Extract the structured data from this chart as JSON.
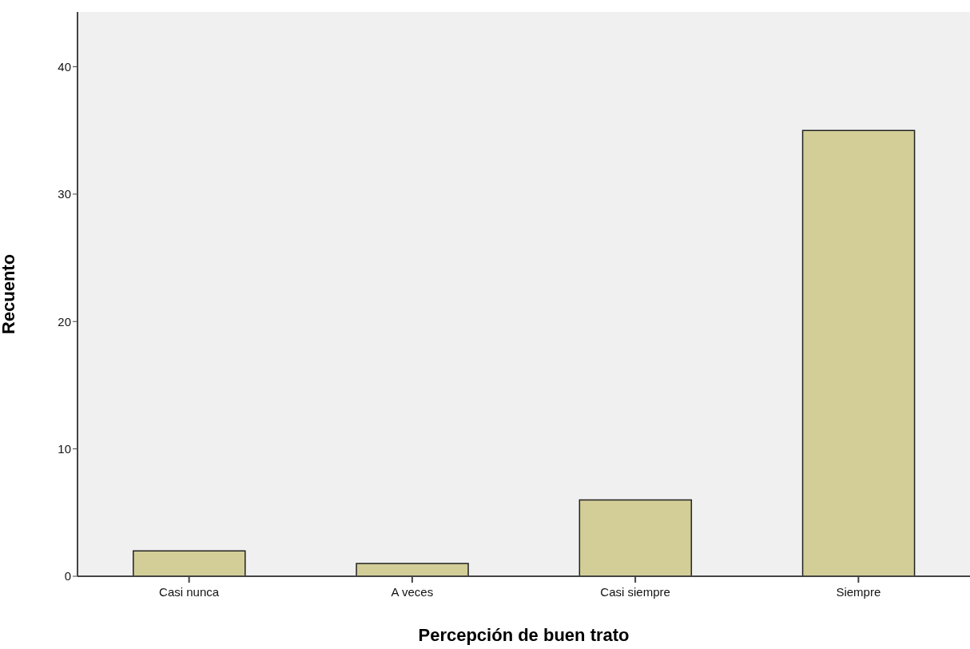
{
  "chart_data": {
    "type": "bar",
    "xlabel": "Percepción de buen trato",
    "ylabel": "Recuento",
    "categories": [
      "Casi nunca",
      "A veces",
      "Casi siempre",
      "Siempre"
    ],
    "values": [
      2,
      1,
      6,
      35
    ],
    "color": "#d3ce97",
    "ylim": [
      0,
      44.3
    ],
    "yticks": [
      0,
      10,
      20,
      30,
      40
    ],
    "grid": false
  }
}
